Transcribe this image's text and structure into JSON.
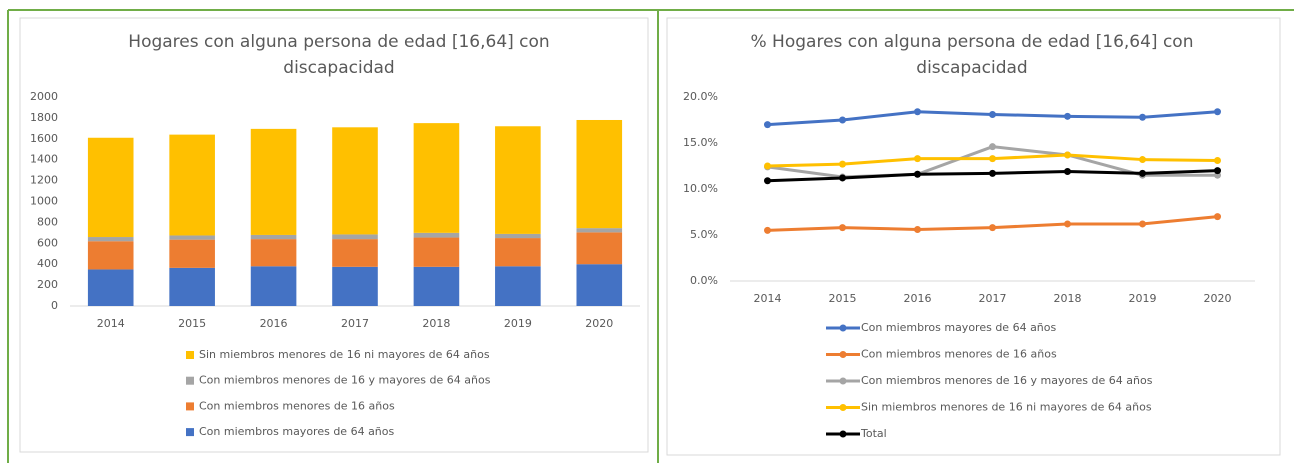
{
  "chart_data": [
    {
      "type": "stacked_bar",
      "title": "Hogares con alguna persona de edad [16,64] con discapacidad",
      "categories": [
        "2014",
        "2015",
        "2016",
        "2017",
        "2018",
        "2019",
        "2020"
      ],
      "series": [
        {
          "name": "Con miembros mayores de 64 años",
          "color": "#4472c4",
          "values": [
            350,
            365,
            380,
            375,
            375,
            380,
            400
          ]
        },
        {
          "name": "Con miembros menores de 16 años",
          "color": "#ed7d31",
          "values": [
            270,
            270,
            260,
            265,
            280,
            270,
            305
          ]
        },
        {
          "name": "Con miembros menores de 16 y mayores de 64 años",
          "color": "#a5a5a5",
          "values": [
            40,
            40,
            40,
            45,
            45,
            40,
            40
          ]
        },
        {
          "name": "Sin miembros menores de 16 ni mayores de 64 años",
          "color": "#ffc000",
          "values": [
            950,
            965,
            1015,
            1025,
            1050,
            1030,
            1035
          ]
        }
      ],
      "ylim": [
        0,
        2000
      ],
      "yticks": [
        0,
        200,
        400,
        600,
        800,
        1000,
        1200,
        1400,
        1600,
        1800,
        2000
      ],
      "grid": false,
      "legend": "bottom"
    },
    {
      "type": "line",
      "title": "% Hogares con alguna persona de edad [16,64] con discapacidad",
      "categories": [
        "2014",
        "2015",
        "2016",
        "2017",
        "2018",
        "2019",
        "2020"
      ],
      "series": [
        {
          "name": "Con miembros mayores de 64 años",
          "color": "#4472c4",
          "values": [
            17.0,
            17.5,
            18.4,
            18.1,
            17.9,
            17.8,
            18.4
          ]
        },
        {
          "name": "Con miembros menores de 16 años",
          "color": "#ed7d31",
          "values": [
            5.5,
            5.8,
            5.6,
            5.8,
            6.2,
            6.2,
            7.0
          ]
        },
        {
          "name": "Con miembros menores de 16 y mayores de 64 años",
          "color": "#a5a5a5",
          "values": [
            12.4,
            11.3,
            11.6,
            14.6,
            13.7,
            11.5,
            11.5
          ]
        },
        {
          "name": "Sin miembros menores de 16 ni mayores de 64 años",
          "color": "#ffc000",
          "values": [
            12.5,
            12.7,
            13.3,
            13.3,
            13.7,
            13.2,
            13.1
          ]
        },
        {
          "name": "Total",
          "color": "#000000",
          "values": [
            10.9,
            11.2,
            11.6,
            11.7,
            11.9,
            11.7,
            12.0
          ]
        }
      ],
      "ylim": [
        0,
        20
      ],
      "yticks": [
        {
          "value": 0,
          "label": "0.0%"
        },
        {
          "value": 5,
          "label": "5.0%"
        },
        {
          "value": 10,
          "label": "10.0%"
        },
        {
          "value": 15,
          "label": "15.0%"
        },
        {
          "value": 20,
          "label": "20.0%"
        }
      ],
      "grid": false,
      "legend": "bottom"
    }
  ]
}
